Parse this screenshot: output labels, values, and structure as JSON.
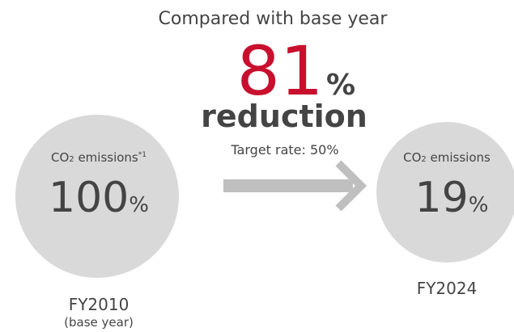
{
  "header": {
    "title": "Compared with base year"
  },
  "reduction": {
    "value": 81,
    "unit": "%",
    "label": "reduction",
    "target": "Target rate: 50%"
  },
  "base": {
    "label": {
      "base": "CO",
      "sub": "2",
      "rest": " emissions",
      "note": "*1"
    },
    "value": 100,
    "unit": "%",
    "year": "FY2010",
    "note": "(base year)"
  },
  "current": {
    "label": {
      "base": "CO",
      "sub": "2",
      "rest": " emissions"
    },
    "value": 19,
    "unit": "%",
    "year": "FY2024"
  }
}
